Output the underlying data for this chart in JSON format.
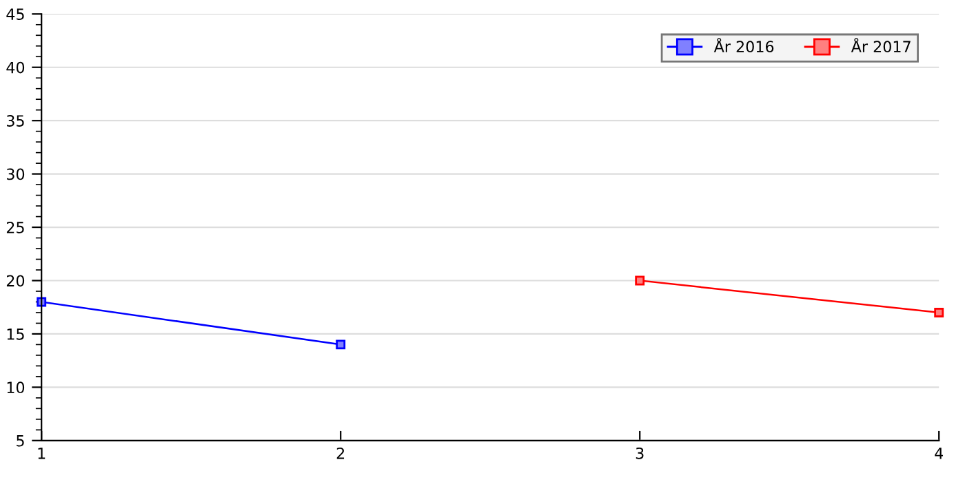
{
  "chart_data": {
    "type": "line",
    "xlim": [
      1,
      4
    ],
    "xticks": [
      1,
      2,
      3,
      4
    ],
    "ylim": [
      5,
      45
    ],
    "yticks": [
      5,
      10,
      15,
      20,
      25,
      30,
      35,
      40,
      45
    ],
    "grid": "y",
    "legend": "top right",
    "marker": "square",
    "line_style": "solid",
    "series": [
      {
        "name": "År 2016",
        "color": "#0000ff",
        "x": [
          1,
          2
        ],
        "values": [
          18,
          14
        ]
      },
      {
        "name": "År 2017",
        "color": "#ff0000",
        "x": [
          3,
          4
        ],
        "values": [
          20,
          17
        ]
      }
    ]
  }
}
